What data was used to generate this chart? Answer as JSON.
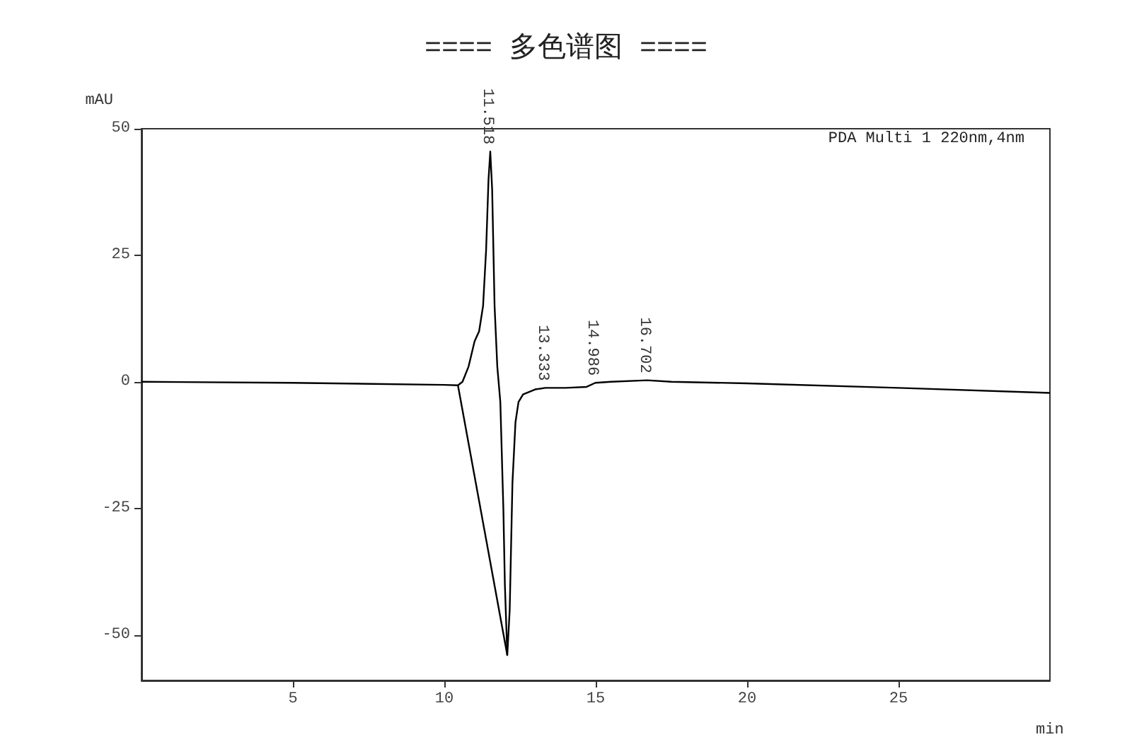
{
  "chart_data": {
    "type": "line",
    "title": "==== 多色谱图 ====",
    "xlabel": "min",
    "ylabel": "mAU",
    "xlim": [
      0,
      30
    ],
    "xticks": [
      5,
      10,
      15,
      20,
      25
    ],
    "ylim": [
      -59,
      50
    ],
    "yticks": [
      -50,
      -25,
      0,
      25,
      50
    ],
    "grid": false,
    "marker": "none",
    "line_style": "solid",
    "series": [
      {
        "color": "#000000",
        "x": [
          0,
          5,
          10,
          10.45,
          10.6,
          10.8,
          11.0,
          11.15,
          11.28,
          11.38,
          11.46,
          11.518,
          11.58,
          11.66,
          11.75,
          11.85,
          11.95,
          12.0,
          12.08,
          12.16,
          12.25,
          12.35,
          12.45,
          12.6,
          13,
          13.333,
          14,
          14.7,
          14.986,
          15.5,
          16.702,
          17.5,
          20,
          25,
          30
        ],
        "values": [
          0,
          -0.2,
          -0.6,
          -0.7,
          0,
          3,
          8,
          10,
          15,
          26,
          40,
          45.5,
          38,
          15,
          3,
          -4,
          -25,
          -40,
          -54,
          -45,
          -20,
          -8,
          -4,
          -2.5,
          -1.5,
          -1.2,
          -1.2,
          -1,
          -0.2,
          0,
          0.3,
          0,
          -0.3,
          -1.2,
          -2.2
        ]
      },
      {
        "color": "#000000",
        "x": [
          10.45,
          12.08
        ],
        "values": [
          -0.7,
          -54
        ]
      }
    ],
    "annotations": [
      {
        "text": "11.518",
        "x": 11.518,
        "y": 45.5
      },
      {
        "text": "13.333",
        "x": 13.333,
        "y": -1.2
      },
      {
        "text": "14.986",
        "x": 14.986,
        "y": -0.2
      },
      {
        "text": "16.702",
        "x": 16.702,
        "y": 0.3
      },
      "PDA Multi 1 220nm,4nm"
    ]
  }
}
